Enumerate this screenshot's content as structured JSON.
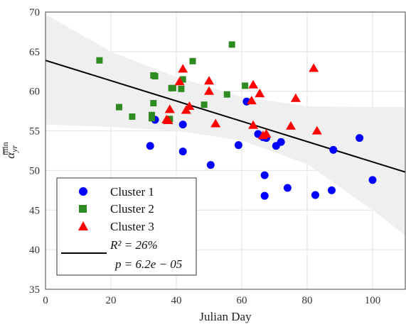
{
  "chart_data": {
    "type": "scatter",
    "xlabel": "Julian Day",
    "ylabel_base": "α",
    "ylabel_sup": "min",
    "ylabel_sub": "yr",
    "xlim": [
      0,
      110
    ],
    "ylim": [
      35,
      70
    ],
    "x_ticks": [
      "0",
      "20",
      "40",
      "60",
      "80",
      "100"
    ],
    "y_ticks": [
      "35",
      "40",
      "45",
      "50",
      "55",
      "60",
      "65",
      "70"
    ],
    "grid": true,
    "legend_position": "bottom-left",
    "series": [
      {
        "name": "Cluster 1",
        "marker": "circle",
        "color": "#0000ff",
        "points": [
          [
            32,
            53.1
          ],
          [
            33.5,
            56.4
          ],
          [
            42,
            52.4
          ],
          [
            42,
            55.8
          ],
          [
            50.5,
            50.7
          ],
          [
            59,
            53.2
          ],
          [
            61.5,
            58.7
          ],
          [
            65,
            54.6
          ],
          [
            66.5,
            54.2
          ],
          [
            67,
            49.4
          ],
          [
            67,
            46.8
          ],
          [
            67.5,
            54.1
          ],
          [
            70.5,
            53.1
          ],
          [
            72,
            53.6
          ],
          [
            74,
            47.8
          ],
          [
            82.5,
            46.9
          ],
          [
            87.5,
            47.5
          ],
          [
            88,
            52.6
          ],
          [
            96,
            54.1
          ],
          [
            100,
            48.8
          ]
        ]
      },
      {
        "name": "Cluster 2",
        "marker": "square",
        "color": "#2e8b22",
        "points": [
          [
            16.5,
            63.9
          ],
          [
            22.5,
            58
          ],
          [
            26.5,
            56.8
          ],
          [
            32.5,
            56.6
          ],
          [
            32.5,
            57
          ],
          [
            33,
            58.5
          ],
          [
            33,
            62
          ],
          [
            33.5,
            61.9
          ],
          [
            38,
            56.5
          ],
          [
            38.5,
            60.4
          ],
          [
            39,
            60.4
          ],
          [
            41.5,
            60.3
          ],
          [
            42,
            61.5
          ],
          [
            45,
            63.8
          ],
          [
            48.5,
            58.3
          ],
          [
            55.5,
            59.6
          ],
          [
            57,
            65.9
          ],
          [
            61,
            60.7
          ]
        ]
      },
      {
        "name": "Cluster 3",
        "marker": "triangle",
        "color": "#ff0000",
        "points": [
          [
            37,
            56.4
          ],
          [
            37.5,
            56.3
          ],
          [
            38,
            57.7
          ],
          [
            41,
            61.2
          ],
          [
            42,
            62.8
          ],
          [
            43,
            57.6
          ],
          [
            44,
            58.1
          ],
          [
            50,
            61.3
          ],
          [
            50,
            60
          ],
          [
            52,
            55.9
          ],
          [
            63,
            58.8
          ],
          [
            63.5,
            55.7
          ],
          [
            63.5,
            60.8
          ],
          [
            65.5,
            59.7
          ],
          [
            66.5,
            54.4
          ],
          [
            67.5,
            54.6
          ],
          [
            75,
            55.6
          ],
          [
            76.5,
            59.1
          ],
          [
            82,
            62.9
          ],
          [
            83,
            55
          ]
        ]
      }
    ],
    "fit": {
      "name_line1": "R² = 26%",
      "name_line2": "p = 6.2e − 05",
      "color": "#000000",
      "x": [
        0,
        110
      ],
      "y": [
        63.9,
        49.8
      ],
      "ci_upper": [
        [
          0,
          69.7
        ],
        [
          20,
          65.0
        ],
        [
          40,
          61.8
        ],
        [
          60,
          59.3
        ],
        [
          80,
          58.1
        ],
        [
          100,
          58.0
        ],
        [
          110,
          58.0
        ]
      ],
      "ci_lower": [
        [
          0,
          55.8
        ],
        [
          20,
          55.5
        ],
        [
          40,
          55.0
        ],
        [
          60,
          53.8
        ],
        [
          80,
          50.8
        ],
        [
          100,
          45.0
        ],
        [
          110,
          41.8
        ]
      ]
    }
  }
}
